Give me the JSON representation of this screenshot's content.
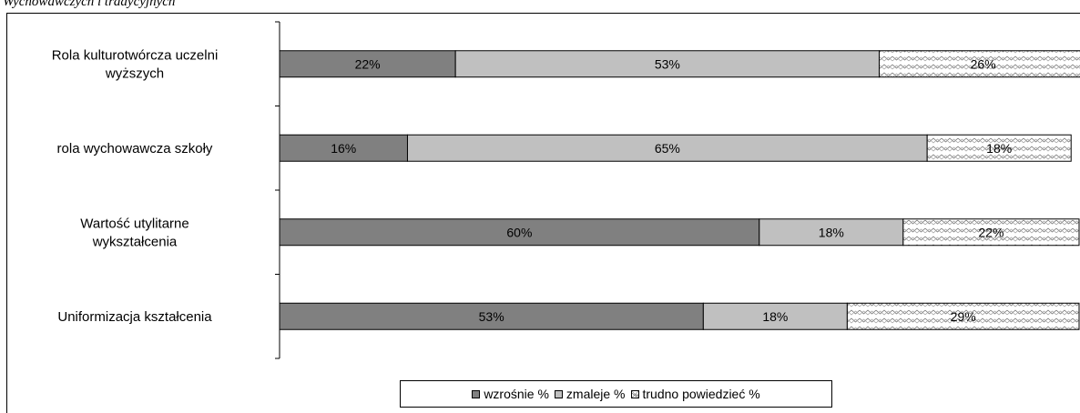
{
  "header": {
    "caption": "Wychowawczych i tradycyjnych"
  },
  "colors": {
    "rises": "#808080",
    "falls": "#c0c0c0",
    "hard": "#ffffff",
    "border": "#000000"
  },
  "chart_data": {
    "type": "bar",
    "orientation": "horizontal",
    "stacked": "percent",
    "categories": [
      "Rola kulturotwórcza uczelni wyższych",
      "rola wychowawcza szkoły",
      "Wartość utylitarne wykształcenia",
      "Uniformizacja kształcenia"
    ],
    "category_lines": [
      [
        "Rola kulturotwórcza uczelni",
        "wyższych"
      ],
      [
        "rola wychowawcza szkoły"
      ],
      [
        "Wartość utylitarne",
        "wykształcenia"
      ],
      [
        "Uniformizacja kształcenia"
      ]
    ],
    "series": [
      {
        "name": "wzrośnie %",
        "values": [
          22,
          16,
          60,
          53
        ],
        "labels": [
          "22%",
          "16%",
          "60%",
          "53%"
        ],
        "color": "#808080",
        "pattern": "solid"
      },
      {
        "name": "zmaleje %",
        "values": [
          53,
          65,
          18,
          18
        ],
        "labels": [
          "53%",
          "65%",
          "18%",
          "18%"
        ],
        "color": "#c0c0c0",
        "pattern": "solid"
      },
      {
        "name": "trudno powiedzieć %",
        "values": [
          26,
          18,
          22,
          29
        ],
        "labels": [
          "26%",
          "18%",
          "22%",
          "29%"
        ],
        "color": "#ffffff",
        "pattern": "zigzag"
      }
    ],
    "legend_position": "bottom",
    "grid": false
  }
}
